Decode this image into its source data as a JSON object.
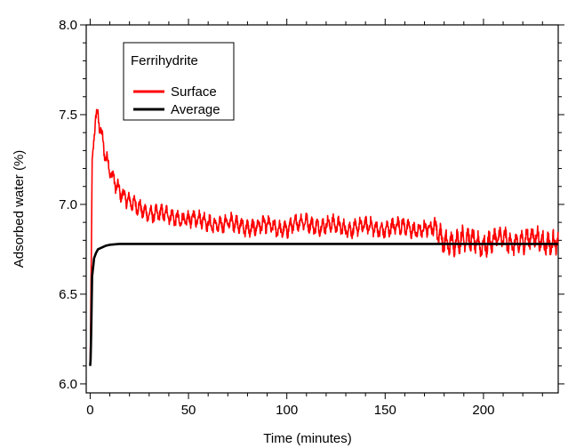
{
  "chart_data": {
    "type": "line",
    "title": "",
    "xlabel": "Time (minutes)",
    "ylabel": "Adsorbed water (%)",
    "xlim": [
      -2,
      238
    ],
    "ylim": [
      5.95,
      8.0
    ],
    "x_ticks": [
      0,
      50,
      100,
      150,
      200
    ],
    "x_tick_labels": [
      "0",
      "50",
      "100",
      "150",
      "200"
    ],
    "y_ticks": [
      6.0,
      6.5,
      7.0,
      7.5,
      8.0
    ],
    "y_tick_labels": [
      "6.0",
      "6.5",
      "7.0",
      "7.5",
      "8.0"
    ],
    "grid": false,
    "legend": {
      "placement": "top-left",
      "title": "Ferrihydrite",
      "entries": [
        "Surface",
        "Average"
      ]
    },
    "series": [
      {
        "name": "Surface",
        "color": "#ff0000",
        "noise": true,
        "x": [
          0,
          0.5,
          1,
          2,
          3,
          4,
          5,
          7,
          10,
          15,
          20,
          30,
          40,
          50,
          60,
          80,
          100,
          110,
          120,
          140,
          160,
          175,
          180,
          200,
          220,
          238
        ],
        "y": [
          6.1,
          6.6,
          7.2,
          7.4,
          7.47,
          7.48,
          7.42,
          7.3,
          7.2,
          7.08,
          7.0,
          6.96,
          6.93,
          6.92,
          6.9,
          6.88,
          6.87,
          6.9,
          6.88,
          6.87,
          6.87,
          6.86,
          6.8,
          6.79,
          6.8,
          6.8
        ]
      },
      {
        "name": "Average",
        "color": "#000000",
        "noise": false,
        "x": [
          0,
          0.3,
          0.6,
          1,
          1.5,
          2,
          3,
          4,
          6,
          8,
          10,
          15,
          20,
          30,
          50,
          100,
          150,
          200,
          238
        ],
        "y": [
          6.1,
          6.15,
          6.35,
          6.6,
          6.65,
          6.7,
          6.73,
          6.75,
          6.76,
          6.77,
          6.775,
          6.78,
          6.78,
          6.78,
          6.78,
          6.78,
          6.78,
          6.78,
          6.78
        ]
      }
    ]
  }
}
